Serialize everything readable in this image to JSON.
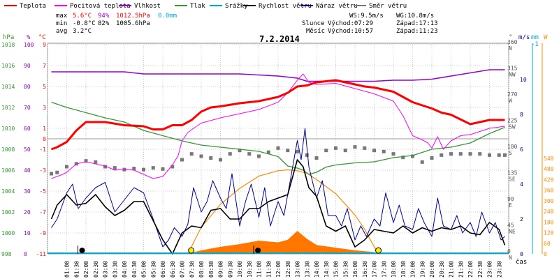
{
  "legend": [
    {
      "name": "Teplota",
      "color": "#ff0000"
    },
    {
      "name": "Pocitová teplota",
      "color": "#ff00ff"
    },
    {
      "name": "Vlhkost",
      "color": "#9900cc"
    },
    {
      "name": "Tlak",
      "color": "#339933"
    },
    {
      "name": "Srážky",
      "color": "#00aacc"
    },
    {
      "name": "Rychlost větru",
      "color": "#000000"
    },
    {
      "name": "Náraz větru",
      "color": "#000099"
    },
    {
      "name": "Směr větru",
      "color": "#777777"
    }
  ],
  "stats": {
    "max_label": "max",
    "max_temp": "5.6°C",
    "max_hum": "94%",
    "max_press": "1012.5hPa",
    "max_rain": "0.0mm",
    "min_label": "min",
    "min_temp": "-0.8°C",
    "min_hum": "82%",
    "min_press": "1005.6hPa",
    "avg_label": "avg",
    "avg_temp": "3.2°C"
  },
  "info": {
    "ws": "WS:9.5m/s",
    "wg": "WG:10.8m/s",
    "sun_label": "Slunce",
    "sun_rise": "Východ:07:29",
    "sun_set": "Západ:17:13",
    "moon_label": "Měsíc",
    "moon_rise": "Východ:10:57",
    "moon_set": "Západ:11:23"
  },
  "chart_data": {
    "type": "line",
    "title": "7.2.2014",
    "xlabel": "čas",
    "x_ticks": [
      "01:00",
      "01:30",
      "02:00",
      "02:30",
      "03:00",
      "03:30",
      "04:00",
      "04:30",
      "05:00",
      "05:30",
      "06:00",
      "06:30",
      "07:00",
      "07:30",
      "08:00",
      "08:30",
      "09:00",
      "09:30",
      "10:00",
      "10:30",
      "11:00",
      "11:30",
      "12:00",
      "12:30",
      "13:00",
      "13:30",
      "14:00",
      "14:30",
      "15:00",
      "15:30",
      "16:00",
      "16:30",
      "17:00",
      "17:30",
      "18:00",
      "18:30",
      "19:00",
      "19:30",
      "20:00",
      "20:30",
      "21:00",
      "21:30",
      "22:00",
      "22:30",
      "23:00",
      "23:30"
    ],
    "axes": {
      "pressure": {
        "label": "hPa",
        "ticks": [
          "998",
          "1000",
          "1002",
          "1004",
          "1006",
          "1008",
          "1010",
          "1012",
          "1014",
          "1016",
          "1018"
        ],
        "range": [
          998,
          1018
        ]
      },
      "humidity": {
        "label": "%",
        "ticks": [
          "0",
          "10",
          "20",
          "30",
          "40",
          "50",
          "60",
          "70",
          "80",
          "90",
          "100"
        ],
        "range": [
          0,
          100
        ]
      },
      "temperature": {
        "label": "°C",
        "ticks": [
          "-11",
          "-9",
          "-7",
          "-5",
          "-3",
          "-1",
          "0",
          "1",
          "3",
          "5",
          "7",
          "9"
        ],
        "range": [
          -11,
          9
        ]
      },
      "direction": {
        "label": "°",
        "ticks": [
          "0",
          "45",
          "90",
          "135",
          "180",
          "225",
          "270",
          "315",
          "360"
        ],
        "dir_names": [
          "N",
          "NE",
          "E",
          "SE",
          "S",
          "SW",
          "W",
          "NW",
          "N"
        ],
        "range": [
          0,
          360
        ]
      },
      "wind": {
        "label": "m/s",
        "ticks": [
          "0",
          "2",
          "4",
          "6",
          "8",
          "10"
        ],
        "range": [
          0,
          12
        ]
      },
      "rain": {
        "label": "mm",
        "ticks": [
          "-1"
        ]
      },
      "solar": {
        "label": "W",
        "ticks": [
          "0",
          "60",
          "120",
          "180",
          "240",
          "300",
          "360",
          "420",
          "480",
          "540"
        ],
        "range": [
          0,
          540
        ]
      }
    },
    "series": [
      {
        "name": "Teplota",
        "axis": "temperature",
        "color": "#ff0000",
        "hours": [
          0.2,
          0.5,
          1,
          1.5,
          2,
          3,
          4,
          5,
          5.5,
          6,
          6.5,
          7,
          7.5,
          8,
          8.5,
          9,
          10,
          11,
          12,
          12.5,
          13,
          13.5,
          14,
          15,
          16,
          16.5,
          17,
          18,
          19,
          20,
          20.5,
          21,
          22,
          23,
          23.8
        ],
        "values": [
          -1.0,
          -0.8,
          -0.3,
          0.8,
          1.6,
          1.6,
          1.3,
          1.2,
          0.9,
          0.9,
          1.3,
          1.3,
          1.8,
          2.6,
          3.0,
          3.1,
          3.4,
          3.6,
          4.0,
          4.4,
          5.0,
          5.1,
          5.4,
          5.6,
          5.2,
          5.0,
          4.9,
          4.5,
          3.5,
          2.9,
          2.5,
          2.3,
          1.4,
          1.8,
          1.8
        ]
      },
      {
        "name": "Pocitová teplota",
        "axis": "temperature",
        "color": "#ff00ff",
        "hours": [
          0.2,
          0.8,
          1,
          1.5,
          2,
          3,
          3.5,
          4,
          4.5,
          5,
          5.5,
          6,
          6.5,
          6.8,
          7,
          7.3,
          7.6,
          8,
          9,
          10,
          11,
          12,
          12.5,
          13,
          13.3,
          13.6,
          14,
          15,
          16,
          17,
          18,
          18.5,
          19,
          19.5,
          19.8,
          20,
          20.3,
          20.6,
          21,
          21.5,
          22,
          23,
          23.8
        ],
        "values": [
          -3.8,
          -3.4,
          -3.2,
          -2.4,
          -2.2,
          -2.6,
          -3.0,
          -2.9,
          -3.0,
          -3.4,
          -3.8,
          -3.6,
          -2.5,
          -1.6,
          -0.2,
          0.6,
          1.0,
          1.5,
          2.0,
          2.4,
          2.8,
          3.5,
          4.4,
          5.6,
          6.2,
          5.4,
          5.2,
          5.3,
          4.8,
          4.3,
          3.6,
          2.2,
          0.3,
          -0.1,
          -0.4,
          -0.9,
          0.2,
          -1.0,
          -0.2,
          0.3,
          0.4,
          1.0,
          1.2
        ]
      },
      {
        "name": "Vlhkost",
        "axis": "humidity",
        "color": "#9900cc",
        "hours": [
          0.2,
          1,
          2,
          3,
          4,
          5,
          6,
          7,
          8,
          9,
          10,
          11,
          12,
          13,
          13.5,
          14,
          15,
          16,
          17,
          18,
          19,
          20,
          21,
          22,
          23,
          23.8
        ],
        "values": [
          87,
          87,
          87,
          87,
          87,
          86,
          86,
          86,
          86,
          86,
          86,
          85.5,
          85,
          84,
          82.5,
          82.5,
          82.5,
          82.5,
          82.5,
          83,
          83,
          83.5,
          85,
          86.5,
          88,
          88
        ]
      },
      {
        "name": "Tlak",
        "axis": "pressure",
        "color": "#339933",
        "hours": [
          0.2,
          1,
          2,
          3,
          4,
          5,
          6,
          7,
          8,
          9,
          10,
          11,
          12,
          12.5,
          13,
          13.3,
          13.6,
          14,
          14.5,
          15,
          16,
          17,
          18,
          19,
          20,
          21,
          22,
          23,
          23.8
        ],
        "values": [
          1012.5,
          1012,
          1011.5,
          1011,
          1010.6,
          1009.8,
          1009.3,
          1008.8,
          1008.4,
          1008.2,
          1008.0,
          1007.8,
          1007.3,
          1006.4,
          1006.2,
          1006.0,
          1005.6,
          1005.8,
          1006.3,
          1006.5,
          1006.7,
          1006.8,
          1007.2,
          1007.4,
          1008.0,
          1008.2,
          1008.6,
          1009.5,
          1010.1
        ]
      },
      {
        "name": "Rychlost větru",
        "axis": "wind",
        "color": "#000000",
        "hours": [
          0.2,
          0.5,
          1,
          1.5,
          2,
          2.5,
          3,
          3.5,
          4,
          4.5,
          5,
          5.5,
          6,
          6.5,
          7,
          7.5,
          8,
          8.5,
          9,
          9.5,
          10,
          10.5,
          11,
          11.5,
          12,
          12.5,
          13,
          13.3,
          13.6,
          14,
          14.5,
          15,
          15.5,
          16,
          16.5,
          17,
          17.5,
          18,
          18.5,
          19,
          19.5,
          20,
          20.5,
          21,
          21.5,
          22,
          22.5,
          23,
          23.5,
          23.8
        ],
        "values": [
          2.0,
          2.8,
          3.4,
          2.8,
          2.9,
          3.4,
          2.7,
          2.2,
          2.5,
          3.0,
          3.0,
          1.9,
          0.8,
          0.0,
          1.2,
          1.6,
          1.5,
          2.5,
          2.6,
          2.0,
          2.0,
          2.6,
          2.6,
          3.0,
          3.2,
          3.4,
          5.4,
          5.0,
          3.8,
          3.3,
          1.6,
          1.3,
          1.6,
          0.4,
          0.8,
          1.4,
          1.3,
          1.2,
          1.6,
          1.2,
          1.5,
          1.3,
          1.5,
          1.4,
          1.6,
          1.2,
          1.1,
          1.8,
          1.4,
          0.5
        ]
      },
      {
        "name": "Náraz větru",
        "axis": "wind",
        "color": "#000099",
        "hours": [
          0.2,
          0.5,
          1,
          1.3,
          1.6,
          2,
          2.5,
          3,
          3.5,
          4,
          4.5,
          5,
          5.5,
          6,
          6.3,
          6.6,
          7,
          7.3,
          7.6,
          8,
          8.3,
          8.6,
          9,
          9.3,
          9.6,
          10,
          10.3,
          10.6,
          11,
          11.3,
          11.6,
          12,
          12.3,
          12.6,
          13,
          13.2,
          13.4,
          13.6,
          14,
          14.3,
          14.6,
          15,
          15.3,
          15.6,
          16,
          16.3,
          16.6,
          17,
          17.3,
          17.6,
          18,
          18.3,
          18.6,
          19,
          19.3,
          19.6,
          20,
          20.3,
          20.6,
          21,
          21.3,
          21.6,
          22,
          22.3,
          22.6,
          23,
          23.3,
          23.6,
          23.8
        ],
        "values": [
          1.5,
          2.0,
          3.5,
          4.0,
          2.6,
          3.2,
          3.8,
          4.1,
          2.4,
          3.1,
          3.8,
          3.5,
          2.0,
          0.4,
          0.8,
          1.5,
          1.0,
          1.7,
          3.8,
          2.4,
          3.0,
          4.2,
          3.2,
          2.6,
          4.6,
          1.6,
          3.0,
          4.0,
          2.1,
          3.8,
          1.6,
          3.0,
          2.2,
          4.0,
          6.5,
          5.4,
          7.2,
          5.0,
          3.2,
          4.2,
          2.2,
          2.2,
          1.6,
          2.6,
          0.8,
          1.6,
          1.0,
          2.0,
          1.6,
          3.5,
          1.8,
          2.8,
          1.6,
          1.4,
          2.6,
          1.8,
          1.0,
          3.2,
          1.6,
          1.4,
          2.2,
          1.2,
          1.8,
          1.0,
          2.4,
          1.2,
          1.8,
          0.8,
          1.0
        ]
      },
      {
        "name": "Směr větru",
        "axis": "direction",
        "color": "#777777",
        "hours": [
          0.2,
          0.5,
          1,
          1.5,
          2,
          2.5,
          3,
          3.5,
          4,
          4.5,
          5,
          5.5,
          6,
          6.5,
          7,
          7.5,
          8,
          8.5,
          9,
          9.5,
          10,
          10.5,
          11,
          11.5,
          12,
          12.5,
          13,
          13.5,
          14,
          14.5,
          15,
          15.5,
          16,
          16.5,
          17,
          17.5,
          18,
          18.5,
          19,
          19.5,
          20,
          20.5,
          21,
          21.5,
          22,
          22.5,
          23,
          23.5,
          23.8
        ],
        "values": [
          138,
          140,
          150,
          155,
          160,
          158,
          150,
          148,
          145,
          147,
          145,
          148,
          146,
          150,
          162,
          172,
          168,
          165,
          162,
          172,
          178,
          172,
          168,
          175,
          182,
          178,
          176,
          170,
          165,
          178,
          182,
          178,
          184,
          182,
          178,
          176,
          172,
          166,
          168,
          158,
          165,
          170,
          172,
          172,
          172,
          172,
          170,
          170,
          170
        ]
      },
      {
        "name": "Solar",
        "axis": "solar",
        "color": "#ff8800",
        "hours": [
          7.3,
          8,
          9,
          10,
          11,
          12,
          12.5,
          13,
          13.5,
          14,
          15,
          16,
          16.5,
          17,
          17.3
        ],
        "values": [
          0,
          150,
          280,
          370,
          440,
          470,
          475,
          470,
          455,
          420,
          340,
          220,
          140,
          40,
          0
        ]
      },
      {
        "name": "UV",
        "axis": "solar",
        "color": "#ff7700",
        "hours": [
          7.3,
          8,
          9,
          10,
          11,
          12,
          12.5,
          13,
          13.5,
          14,
          15,
          16,
          17,
          17.3
        ],
        "values": [
          0,
          20,
          40,
          55,
          75,
          65,
          80,
          130,
          85,
          50,
          35,
          20,
          10,
          0
        ]
      }
    ]
  },
  "markers": {
    "sun_hours": [
      7.48,
      17.22
    ],
    "moon_hours": [
      1.8,
      10.95
    ],
    "dir_labels": [
      "N",
      "NE",
      "E",
      "SE",
      "S",
      "SW",
      "W",
      "NW",
      "N"
    ]
  }
}
